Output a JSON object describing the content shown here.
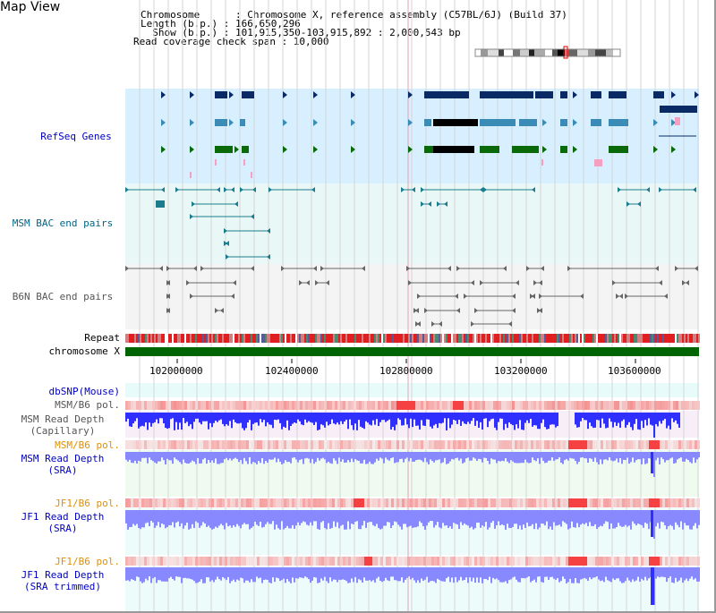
{
  "window": {
    "title": "Map View"
  },
  "info": {
    "chromosome": "Chromosome      : Chromosome X, reference assembly (C57BL/6J) (Build 37)",
    "length": "Length (b.p.) : 166,650,296",
    "show": "  Show (b.p.) : 101,915,350-103,915,892 : 2,000,543 bp",
    "coverage": "Read coverage check span : 10,000"
  },
  "tracks": {
    "refseq": "RefSeq Genes",
    "msm_bac": "MSM BAC end pairs",
    "b6n_bac": "B6N BAC end pairs",
    "repeat": "Repeat",
    "chromosome": "chromosome X",
    "dbsnp": "dbSNP(Mouse)",
    "msm_b6_pol_1": "MSM/B6 pol.",
    "msm_read_depth_cap": "MSM Read Depth\n(Capillary)",
    "msm_b6_pol_2": "MSM/B6 pol.",
    "msm_read_depth_sra": "MSM Read Depth\n(SRA)",
    "jf1_b6_pol_1": "JF1/B6 pol.",
    "jf1_read_depth_sra": "JF1 Read Depth\n(SRA)",
    "jf1_b6_pol_2": "JF1/B6 pol.",
    "jf1_read_depth_trimmed": "JF1 Read Depth\n(SRA trimmed)"
  },
  "axis": {
    "ticks": [
      "102000000",
      "102400000",
      "102800000",
      "103200000",
      "103600000"
    ]
  },
  "colors": {
    "refseq_bg": "#d8efff",
    "bac_bg": "#eaf7f7",
    "label_blue": "#0000c0",
    "label_teal": "#006688",
    "label_gray": "#555555",
    "label_orange": "#e09000",
    "gene_dark": "#0a2a66",
    "gene_mid": "#3a8bb5",
    "gene_green": "#0a6a0a",
    "chrom_green": "#006400",
    "depth_blue": "#2f2fff",
    "depth_light": "#8888ff"
  }
}
